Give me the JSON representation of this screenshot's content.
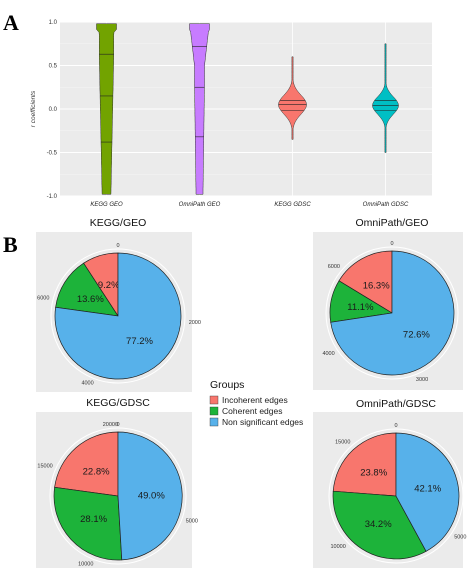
{
  "panels": {
    "a": "A",
    "b": "B"
  },
  "chart_data": [
    {
      "type": "violin",
      "ylabel": "r coefficients",
      "ylim": [
        -1.0,
        1.0
      ],
      "yticks": [
        "-1.0",
        "-0.5",
        "0.0",
        "0.5",
        "1.0"
      ],
      "grid": true,
      "categories": [
        "KEGG GEO",
        "OmniPath GEO",
        "KEGG GDSC",
        "OmniPath GDSC"
      ],
      "colors": [
        "#72a300",
        "#c77cff",
        "#f8766d",
        "#00bfc4"
      ],
      "quartiles": [
        [
          -0.38,
          0.15,
          0.63
        ],
        [
          -0.32,
          0.25,
          0.72
        ],
        [
          -0.02,
          0.05,
          0.1
        ],
        [
          -0.02,
          0.04,
          0.1
        ]
      ],
      "range": [
        [
          -0.98,
          0.98
        ],
        [
          -0.98,
          0.98
        ],
        [
          -0.35,
          0.6
        ],
        [
          -0.5,
          0.75
        ]
      ]
    },
    {
      "type": "pie",
      "title": "KEGG/GEO",
      "values": [
        9.2,
        13.6,
        77.2
      ],
      "labels": [
        "9.2%",
        "13.6%",
        "77.2%"
      ],
      "ticks": [
        "0",
        "2000",
        "4000",
        "6000"
      ]
    },
    {
      "type": "pie",
      "title": "OmniPath/GEO",
      "values": [
        16.3,
        11.1,
        72.6
      ],
      "labels": [
        "16.3%",
        "11.1%",
        "72.6%"
      ],
      "ticks": [
        "0",
        "3000",
        "4000",
        "6000"
      ]
    },
    {
      "type": "pie",
      "title": "KEGG/GDSC",
      "values": [
        22.8,
        28.1,
        49.0
      ],
      "labels": [
        "22.8%",
        "28.1%",
        "49.0%"
      ],
      "ticks": [
        "0",
        "5000",
        "10000",
        "15000",
        "20000"
      ]
    },
    {
      "type": "pie",
      "title": "OmniPath/GDSC",
      "values": [
        23.8,
        34.2,
        42.1
      ],
      "labels": [
        "23.8%",
        "34.2%",
        "42.1%"
      ],
      "ticks": [
        "0",
        "5000",
        "10000",
        "15000"
      ]
    }
  ],
  "legend": {
    "title": "Groups",
    "items": [
      {
        "label": "Incoherent edges",
        "color": "#f8766d"
      },
      {
        "label": "Coherent edges",
        "color": "#1db33a"
      },
      {
        "label": "Non significant edges",
        "color": "#57b1ea"
      }
    ]
  }
}
